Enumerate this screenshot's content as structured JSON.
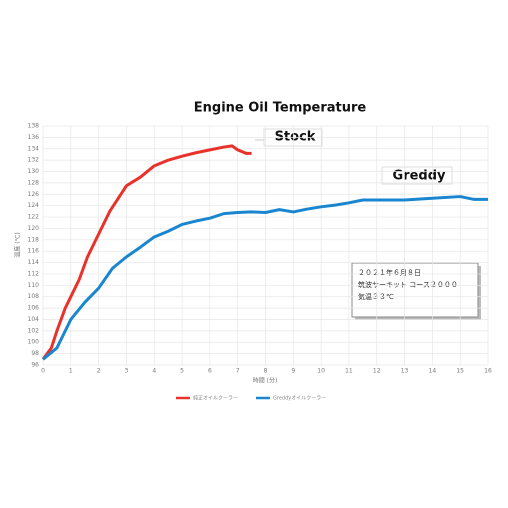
{
  "chart_data": {
    "type": "line",
    "title": "Engine Oil Temperature",
    "x_label": "時間 (分)",
    "y_label": "温度 (℃)",
    "xlim": [
      0,
      16
    ],
    "xticks": [
      0,
      1,
      2,
      3,
      4,
      5,
      6,
      7,
      8,
      9,
      10,
      11,
      12,
      13,
      14,
      15,
      16
    ],
    "ylim": [
      96,
      138
    ],
    "yticks": [
      96,
      98,
      100,
      102,
      104,
      106,
      108,
      110,
      112,
      114,
      116,
      118,
      120,
      122,
      124,
      126,
      128,
      130,
      132,
      134,
      136,
      138
    ],
    "grid": true,
    "series": [
      {
        "name": "純正オイルクーラー",
        "color": "#e8322a",
        "x": [
          0,
          0.3,
          0.5,
          0.8,
          1,
          1.3,
          1.6,
          2,
          2.4,
          2.8,
          3,
          3.5,
          4,
          4.5,
          5,
          5.5,
          6,
          6.5,
          6.8,
          7,
          7.3,
          7.5
        ],
        "values": [
          97,
          99,
          102,
          106,
          108,
          111,
          115,
          119,
          123,
          126,
          127.5,
          129,
          131,
          132,
          132.7,
          133.3,
          133.8,
          134.3,
          134.5,
          133.8,
          133.2,
          133.2
        ]
      },
      {
        "name": "Greddyオイルクーラー",
        "color": "#1a86d0",
        "x": [
          0,
          0.5,
          1,
          1.5,
          2,
          2.5,
          3,
          3.5,
          4,
          4.5,
          5,
          5.5,
          6,
          6.5,
          7,
          7.5,
          8,
          8.5,
          9,
          9.5,
          10,
          10.5,
          11,
          11.5,
          12,
          13,
          14,
          15,
          15.5,
          16
        ],
        "values": [
          97,
          99,
          104,
          107,
          109.5,
          113,
          115,
          116.7,
          118.5,
          119.5,
          120.7,
          121.3,
          121.8,
          122.6,
          122.8,
          122.9,
          122.8,
          123.3,
          122.9,
          123.4,
          123.8,
          124.1,
          124.5,
          125,
          125,
          125,
          125.3,
          125.6,
          125.1,
          125.1
        ]
      }
    ],
    "annotations": [
      "Stock",
      "Greddy"
    ],
    "info_box": [
      "２０２１年６月８日",
      "筑波サーキット コース２０００",
      "気温３３℃"
    ]
  }
}
